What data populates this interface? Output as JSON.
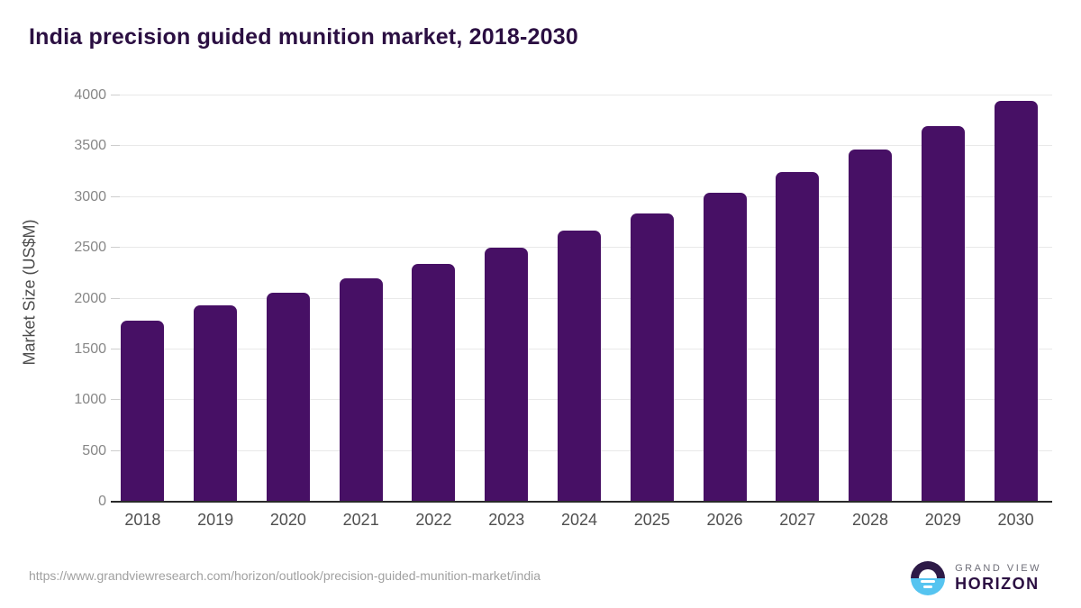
{
  "title": "India precision guided munition market, 2018-2030",
  "chart_data": {
    "type": "bar",
    "categories": [
      "2018",
      "2019",
      "2020",
      "2021",
      "2022",
      "2023",
      "2024",
      "2025",
      "2026",
      "2027",
      "2028",
      "2029",
      "2030"
    ],
    "values": [
      1780,
      1930,
      2060,
      2200,
      2340,
      2500,
      2670,
      2840,
      3040,
      3250,
      3470,
      3700,
      3950
    ],
    "title": "India precision guided munition market, 2018-2030",
    "xlabel": "",
    "ylabel": "Market Size (US$M)",
    "ylim": [
      0,
      4000
    ],
    "y_ticks": [
      0,
      500,
      1000,
      1500,
      2000,
      2500,
      3000,
      3500,
      4000
    ],
    "grid": "horizontal",
    "legend": "none",
    "bar_color": "#471065"
  },
  "footer": {
    "source_url": "https://www.grandviewresearch.com/horizon/outlook/precision-guided-munition-market/india",
    "logo": {
      "line1": "GRAND VIEW",
      "line2": "HORIZON"
    }
  },
  "colors": {
    "bar": "#471065",
    "title_text": "#2b0f42",
    "gridline": "#e9e9e9",
    "axis_line": "#2a2a2a",
    "y_tick_label": "#878787",
    "x_tick_label": "#4f4f4f",
    "y_axis_title": "#4c4c4c",
    "source_url": "#a0a0a0",
    "logo_blue": "#56c4f0",
    "logo_purple": "#2d1a47"
  }
}
